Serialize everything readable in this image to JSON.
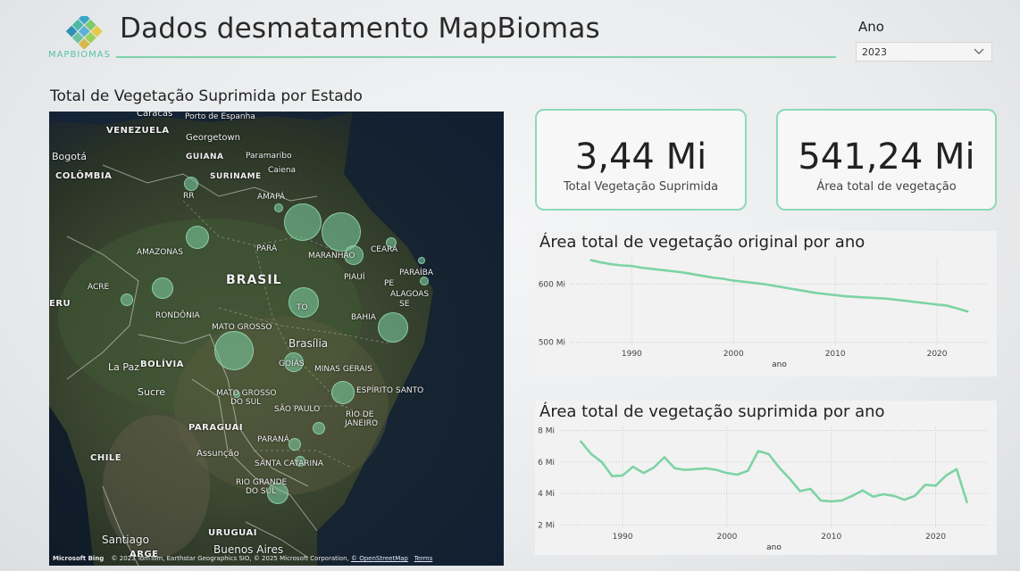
{
  "header": {
    "logo_text": "MAPBIOMAS",
    "title": "Dados desmatamento MapBiomas"
  },
  "filter": {
    "label": "Ano",
    "selected": "2023"
  },
  "map": {
    "title": "Total de Vegetação Suprimida por Estado",
    "labels": {
      "brasil": "BRASIL",
      "venezuela": "VENEZUELA",
      "colombia": "COLÔMBIA",
      "bolivia": "BOLÍVIA",
      "paraguai": "PARAGUAI",
      "chile": "CHILE",
      "uruguai": "URUGUAI",
      "peru": "ERU",
      "argentina": "ARGE",
      "guiana": "GUIANA",
      "suriname": "SURINAME",
      "caracas": "Caracas",
      "porto_espanha": "Porto de Espanha",
      "georgetown": "Georgetown",
      "paramaribo": "Paramaribo",
      "caiena": "Caiena",
      "bogota": "Bogotá",
      "rr": "RR",
      "amapa": "AMAPÁ",
      "amazonas": "AMAZONAS",
      "para": "PARÁ",
      "maranhao": "MARANHÃO",
      "ceara": "CEARÁ",
      "paraiba": "PARAÍBA",
      "pe": "PE",
      "alagoas": "ALAGOAS",
      "se": "SE",
      "piaui": "PIAUÍ",
      "acre": "ACRE",
      "rondonia": "RONDÔNIA",
      "to": "TO",
      "bahia": "BAHIA",
      "mato_grosso": "MATO GROSSO",
      "brasilia": "Brasília",
      "goias": "GOIÁS",
      "minas": "MINAS GERAIS",
      "la_paz": "La Paz",
      "sucre": "Sucre",
      "ms1": "MATO GROSSO",
      "ms2": "DO SUL",
      "es": "ESPÍRITO SANTO",
      "sao_paulo": "SÃO PAULO",
      "rj1": "RIO DE",
      "rj2": "JANEIRO",
      "parana": "PARANÁ",
      "assuncao": "Assunção",
      "sc": "SANTA CATARINA",
      "rs1": "RIO GRANDE",
      "rs2": "DO SUL",
      "santiago": "Santiago",
      "buenos_aires": "Buenos Aires"
    },
    "attribution": {
      "brand": "Microsoft Bing",
      "text": "© 2023 TomTom, Earthstar Geographics SIO, © 2025 Microsoft Corporation,",
      "osm": "© OpenStreetMap",
      "terms": "Terms"
    }
  },
  "cards": [
    {
      "value": "3,44 Mi",
      "label": "Total Vegetação Suprimida"
    },
    {
      "value": "541,24 Mi",
      "label": "Área total de vegetação"
    }
  ],
  "charts": {
    "original": {
      "title": "Área total de vegetação original por ano",
      "xlabel": "ano"
    },
    "suprimida": {
      "title": "Área total de vegetação suprimida por ano",
      "xlabel": "ano"
    }
  },
  "chart_data": [
    {
      "type": "line",
      "title": "Área total de vegetação original por ano",
      "xlabel": "ano",
      "ylabel": "",
      "x": [
        1986,
        1987,
        1988,
        1989,
        1990,
        1991,
        1992,
        1993,
        1994,
        1995,
        1996,
        1997,
        1998,
        1999,
        2000,
        2001,
        2002,
        2003,
        2004,
        2005,
        2006,
        2007,
        2008,
        2009,
        2010,
        2011,
        2012,
        2013,
        2014,
        2015,
        2016,
        2017,
        2018,
        2019,
        2020,
        2021,
        2022,
        2023
      ],
      "y": [
        641,
        637,
        634,
        632,
        631,
        628,
        626,
        624,
        622,
        620,
        617,
        614,
        611,
        609,
        606,
        604,
        602,
        600,
        597,
        594,
        591,
        588,
        585,
        583,
        581,
        579,
        578,
        577,
        576,
        575,
        573,
        571,
        569,
        567,
        565,
        563,
        558,
        553
      ],
      "xticks": [
        "1990",
        "2000",
        "2010",
        "2020"
      ],
      "yticks": [
        "500 Mi",
        "600 Mi"
      ],
      "xlim": [
        1984,
        2025
      ],
      "ylim": [
        495,
        645
      ],
      "color": "#7dd3a4"
    },
    {
      "type": "line",
      "title": "Área total de vegetação suprimida por ano",
      "xlabel": "ano",
      "ylabel": "",
      "x": [
        1986,
        1987,
        1988,
        1989,
        1990,
        1991,
        1992,
        1993,
        1994,
        1995,
        1996,
        1997,
        1998,
        1999,
        2000,
        2001,
        2002,
        2003,
        2004,
        2005,
        2006,
        2007,
        2008,
        2009,
        2010,
        2011,
        2012,
        2013,
        2014,
        2015,
        2016,
        2017,
        2018,
        2019,
        2020,
        2021,
        2022,
        2023
      ],
      "y": [
        7.3,
        6.5,
        6.0,
        5.1,
        5.15,
        5.7,
        5.3,
        5.65,
        6.3,
        5.6,
        5.5,
        5.55,
        5.6,
        5.5,
        5.3,
        5.2,
        5.45,
        6.7,
        6.5,
        5.65,
        4.95,
        4.15,
        4.3,
        3.55,
        3.5,
        3.55,
        3.85,
        4.2,
        3.8,
        3.95,
        3.85,
        3.6,
        3.85,
        4.55,
        4.5,
        5.15,
        5.55,
        3.45
      ],
      "xticks": [
        "1990",
        "2000",
        "2010",
        "2020"
      ],
      "yticks": [
        "2 Mi",
        "4 Mi",
        "6 Mi",
        "8 Mi"
      ],
      "xlim": [
        1984,
        2025
      ],
      "ylim": [
        1.8,
        8.2
      ],
      "color": "#7dd3a4"
    }
  ]
}
